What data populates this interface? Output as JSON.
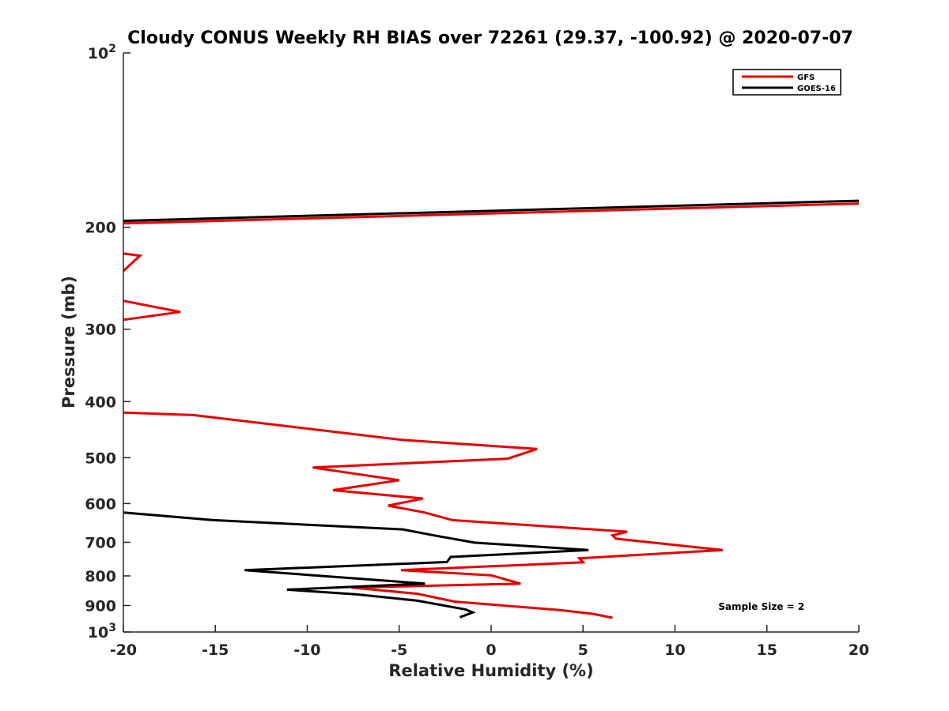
{
  "chart_data": {
    "type": "line",
    "title": "Cloudy CONUS Weekly RH BIAS over 72261 (29.37, -100.92) @ 2020-07-07",
    "xlabel": "Relative Humidity (%)",
    "ylabel": "Pressure (mb)",
    "xlim": [
      -20,
      20
    ],
    "ylim": [
      100,
      1000
    ],
    "y_scale": "log",
    "y_reversed": true,
    "grid": false,
    "legend_position": "top-right",
    "x_ticks": [
      {
        "value": -20,
        "label": "-20"
      },
      {
        "value": -15,
        "label": "-15"
      },
      {
        "value": -10,
        "label": "-10"
      },
      {
        "value": -5,
        "label": "-5"
      },
      {
        "value": 0,
        "label": "0"
      },
      {
        "value": 5,
        "label": "5"
      },
      {
        "value": 10,
        "label": "10"
      },
      {
        "value": 15,
        "label": "15"
      },
      {
        "value": 20,
        "label": "20"
      }
    ],
    "y_ticks": [
      {
        "value": 100,
        "base": "10",
        "exp": "2"
      },
      {
        "value": 200,
        "base": "200",
        "exp": ""
      },
      {
        "value": 300,
        "base": "300",
        "exp": ""
      },
      {
        "value": 400,
        "base": "400",
        "exp": ""
      },
      {
        "value": 500,
        "base": "500",
        "exp": ""
      },
      {
        "value": 600,
        "base": "600",
        "exp": ""
      },
      {
        "value": 700,
        "base": "700",
        "exp": ""
      },
      {
        "value": 800,
        "base": "800",
        "exp": ""
      },
      {
        "value": 900,
        "base": "900",
        "exp": ""
      },
      {
        "value": 1000,
        "base": "10",
        "exp": "3"
      }
    ],
    "series": [
      {
        "name": "GFS",
        "color": "#e60000",
        "segments": [
          [
            [
              -20,
              197
            ],
            [
              20,
              182
            ]
          ],
          [
            [
              -20,
              222
            ],
            [
              -19.1,
              224
            ],
            [
              -20,
              238
            ]
          ],
          [
            [
              -20,
              268
            ],
            [
              -16.9,
              280
            ],
            [
              -20,
              289
            ]
          ],
          [
            [
              -20,
              418
            ],
            [
              -16.2,
              422
            ],
            [
              -4.8,
              466
            ],
            [
              2.5,
              483
            ],
            [
              0.9,
              502
            ],
            [
              -9.7,
              520
            ],
            [
              -5,
              547
            ],
            [
              -8.6,
              569
            ],
            [
              -3.7,
              588
            ],
            [
              -5.6,
              605
            ],
            [
              -3.6,
              622
            ],
            [
              -2.1,
              641
            ],
            [
              7.4,
              671
            ],
            [
              6.6,
              681
            ],
            [
              6.8,
              690
            ],
            [
              12.6,
              722
            ],
            [
              4.8,
              746
            ],
            [
              5,
              758
            ],
            [
              -4.9,
              782
            ],
            [
              0,
              798
            ],
            [
              1.6,
              825
            ],
            [
              -7.6,
              838
            ],
            [
              -4,
              859
            ],
            [
              -2,
              886
            ],
            [
              3.7,
              916
            ],
            [
              5.5,
              930
            ],
            [
              6.6,
              945
            ]
          ]
        ]
      },
      {
        "name": "GOES-16",
        "color": "#000000",
        "segments": [
          [
            [
              -20,
              195
            ],
            [
              20,
              180
            ]
          ],
          [
            [
              -20,
              622
            ],
            [
              -15.1,
              641
            ],
            [
              -4.8,
              665
            ],
            [
              -3,
              682
            ],
            [
              -0.9,
              701
            ],
            [
              5.3,
              722
            ],
            [
              -2.2,
              742
            ],
            [
              -2.4,
              757
            ],
            [
              -13.4,
              782
            ],
            [
              -3.6,
              825
            ],
            [
              -11.1,
              845
            ],
            [
              -7.3,
              861
            ],
            [
              -4,
              883
            ],
            [
              -1.4,
              914
            ],
            [
              -1,
              925
            ],
            [
              -1.7,
              943
            ]
          ]
        ]
      }
    ],
    "annotations": [
      {
        "text": "Sample Size = 2",
        "x": 14.7,
        "y": 905
      }
    ]
  }
}
